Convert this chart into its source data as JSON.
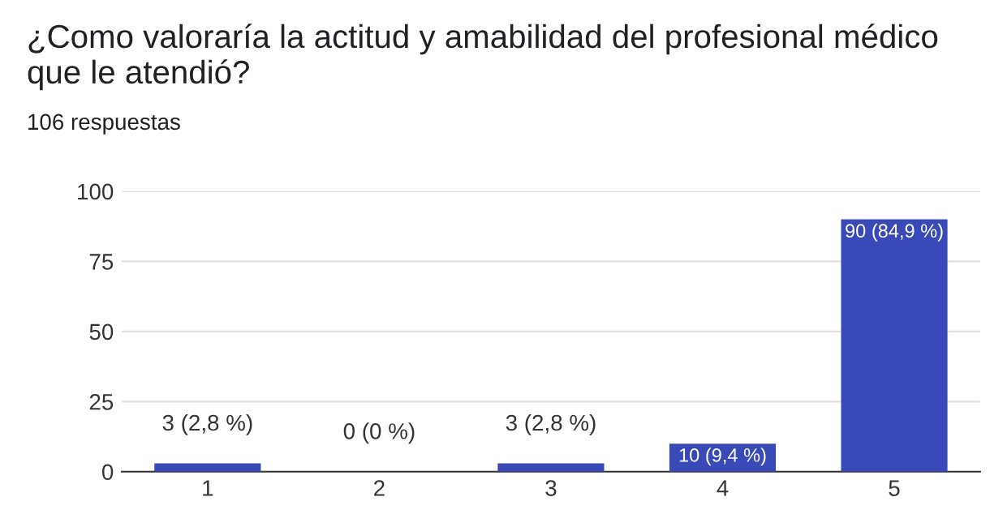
{
  "chart_data": {
    "type": "bar",
    "title": "¿Como valoraría la actitud y amabilidad del profesional médico que le atendió?",
    "subtitle": "106 respuestas",
    "categories": [
      "1",
      "2",
      "3",
      "4",
      "5"
    ],
    "values": [
      3,
      0,
      3,
      10,
      90
    ],
    "value_labels": [
      "3 (2,8 %)",
      "0 (0 %)",
      "3 (2,8 %)",
      "10 (9,4 %)",
      "90 (84,9 %)"
    ],
    "color": "#3949b8",
    "ylim": [
      0,
      100
    ],
    "yticks": [
      0,
      25,
      50,
      75,
      100
    ],
    "grid": "y",
    "legend": false
  }
}
